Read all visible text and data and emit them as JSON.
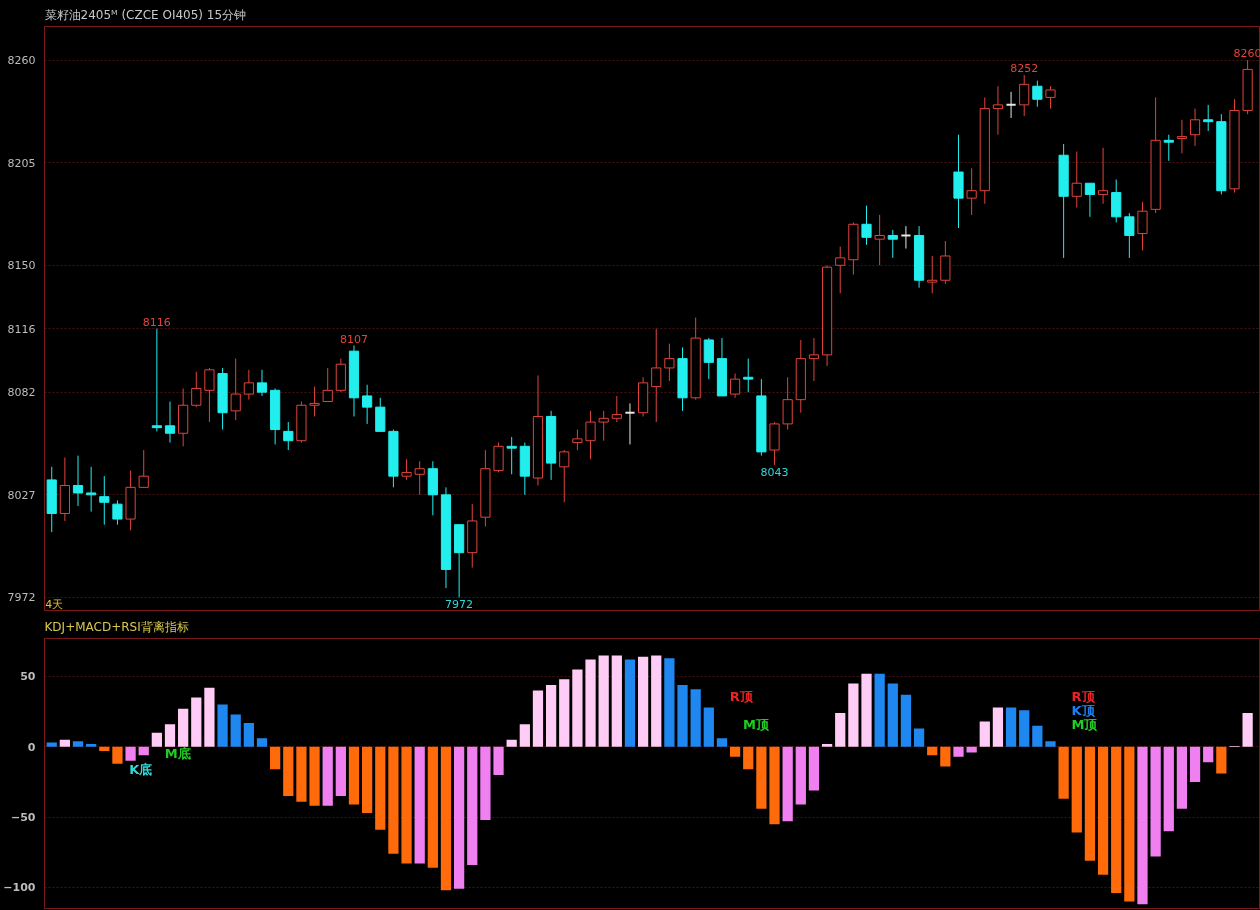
{
  "chart_data": [
    {
      "type": "candlestick",
      "title": "菜籽油2405ᴹ (CZCE OI405)  15分钟",
      "categories": [
        null,
        null,
        null,
        null,
        null,
        null,
        null,
        null,
        null,
        null,
        null,
        null,
        null,
        null,
        null,
        null,
        null,
        null,
        null,
        null,
        null,
        null,
        null,
        null,
        null,
        null,
        null,
        null,
        null,
        null,
        null,
        null,
        null,
        null,
        null,
        null,
        null,
        null,
        null,
        null,
        null,
        null,
        null,
        null,
        null,
        null,
        null,
        null,
        null,
        null,
        null,
        null,
        null,
        null,
        null,
        null,
        null,
        null,
        null,
        null,
        null,
        null,
        null,
        null,
        null,
        null,
        null,
        null,
        null,
        null,
        null,
        null,
        null,
        null,
        null,
        null,
        null,
        null,
        null,
        null,
        null,
        null,
        null,
        null,
        null,
        null,
        null,
        null,
        null,
        null,
        null,
        null
      ],
      "ohlc": [
        [
          8035,
          8042,
          8007,
          8017
        ],
        [
          8017,
          8047,
          8013,
          8032
        ],
        [
          8032,
          8048,
          8021,
          8028
        ],
        [
          8028,
          8042,
          8018,
          8027
        ],
        [
          8026,
          8037,
          8011,
          8023
        ],
        [
          8022,
          8024,
          8011,
          8014
        ],
        [
          8014,
          8040,
          8008,
          8031
        ],
        [
          8031,
          8051,
          8031,
          8037
        ],
        [
          8064,
          8116,
          8061,
          8063
        ],
        [
          8064,
          8077,
          8055,
          8060
        ],
        [
          8060,
          8084,
          8053,
          8075
        ],
        [
          8075,
          8093,
          8074,
          8084
        ],
        [
          8083,
          8095,
          8066,
          8094
        ],
        [
          8092,
          8095,
          8062,
          8071
        ],
        [
          8072,
          8100,
          8067,
          8081
        ],
        [
          8081,
          8094,
          8078,
          8087
        ],
        [
          8087,
          8094,
          8080,
          8082
        ],
        [
          8083,
          8084,
          8054,
          8062
        ],
        [
          8061,
          8066,
          8051,
          8056
        ],
        [
          8056,
          8077,
          8055,
          8075
        ],
        [
          8075,
          8085,
          8069,
          8076
        ],
        [
          8077,
          8095,
          8077,
          8083
        ],
        [
          8083,
          8100,
          8082,
          8097
        ],
        [
          8104,
          8107,
          8069,
          8079
        ],
        [
          8080,
          8086,
          8065,
          8074
        ],
        [
          8074,
          8079,
          8061,
          8061
        ],
        [
          8061,
          8062,
          8031,
          8037
        ],
        [
          8037,
          8046,
          8035,
          8039
        ],
        [
          8038,
          8045,
          8027,
          8041
        ],
        [
          8041,
          8045,
          8016,
          8027
        ],
        [
          8027,
          8031,
          7977,
          7987
        ],
        [
          8011,
          8011,
          7972,
          7996
        ],
        [
          7996,
          8022,
          7988,
          8013
        ],
        [
          8015,
          8051,
          8010,
          8041
        ],
        [
          8040,
          8055,
          8039,
          8053
        ],
        [
          8053,
          8058,
          8038,
          8052
        ],
        [
          8053,
          8055,
          8027,
          8037
        ],
        [
          8036,
          8091,
          8032,
          8069
        ],
        [
          8069,
          8072,
          8035,
          8044
        ],
        [
          8042,
          8051,
          8023,
          8050
        ],
        [
          8055,
          8062,
          8051,
          8057
        ],
        [
          8056,
          8072,
          8046,
          8066
        ],
        [
          8066,
          8072,
          8056,
          8068
        ],
        [
          8068,
          8080,
          8066,
          8070
        ],
        [
          8071,
          8076,
          8054,
          8071
        ],
        [
          8071,
          8090,
          8069,
          8087
        ],
        [
          8085,
          8116,
          8066,
          8095
        ],
        [
          8095,
          8108,
          8088,
          8100
        ],
        [
          8100,
          8106,
          8072,
          8079
        ],
        [
          8079,
          8122,
          8078,
          8111
        ],
        [
          8110,
          8111,
          8089,
          8098
        ],
        [
          8100,
          8111,
          8080,
          8080
        ],
        [
          8081,
          8092,
          8079,
          8089
        ],
        [
          8090,
          8100,
          8082,
          8089
        ],
        [
          8080,
          8089,
          8048,
          8050
        ],
        [
          8051,
          8066,
          8043,
          8065
        ],
        [
          8065,
          8090,
          8062,
          8078
        ],
        [
          8078,
          8110,
          8071,
          8100
        ],
        [
          8100,
          8111,
          8088,
          8102
        ],
        [
          8102,
          8150,
          8096,
          8149
        ],
        [
          8150,
          8160,
          8135,
          8154
        ],
        [
          8153,
          8173,
          8145,
          8172
        ],
        [
          8172,
          8182,
          8161,
          8165
        ],
        [
          8164,
          8177,
          8150,
          8166
        ],
        [
          8166,
          8169,
          8154,
          8164
        ],
        [
          8166,
          8171,
          8159,
          8166
        ],
        [
          8166,
          8171,
          8138,
          8142
        ],
        [
          8141,
          8155,
          8135,
          8142
        ],
        [
          8142,
          8163,
          8140,
          8155
        ],
        [
          8200,
          8220,
          8170,
          8186
        ],
        [
          8186,
          8202,
          8177,
          8190
        ],
        [
          8190,
          8240,
          8183,
          8234
        ],
        [
          8234,
          8246,
          8220,
          8236
        ],
        [
          8236,
          8243,
          8229,
          8236
        ],
        [
          8236,
          8252,
          8230,
          8247
        ],
        [
          8246,
          8249,
          8235,
          8239
        ],
        [
          8240,
          8246,
          8234,
          8244
        ],
        [
          8209,
          8215,
          8154,
          8187
        ],
        [
          8187,
          8211,
          8181,
          8194
        ],
        [
          8194,
          8194,
          8176,
          8188
        ],
        [
          8188,
          8213,
          8183,
          8190
        ],
        [
          8189,
          8196,
          8173,
          8176
        ],
        [
          8176,
          8178,
          8154,
          8166
        ],
        [
          8167,
          8184,
          8158,
          8179
        ],
        [
          8180,
          8240,
          8178,
          8217
        ],
        [
          8217,
          8220,
          8206,
          8216
        ],
        [
          8218,
          8228,
          8210,
          8219
        ],
        [
          8220,
          8234,
          8214,
          8228
        ],
        [
          8228,
          8236,
          8222,
          8227
        ],
        [
          8227,
          8231,
          8188,
          8190
        ],
        [
          8191,
          8239,
          8189,
          8233
        ],
        [
          8233,
          8260,
          8231,
          8255
        ]
      ],
      "ylim": [
        7965,
        8278
      ],
      "yticks": [
        7972,
        8027,
        8082,
        8116,
        8150,
        8205,
        8260
      ],
      "grid": "y",
      "annotations": [
        "4天",
        {
          "text": "8116",
          "y": 8116
        },
        {
          "text": "8107",
          "y": 8107
        },
        {
          "text": "7972",
          "y": 7972
        },
        {
          "text": "8043",
          "y": 8043
        },
        {
          "text": "8252",
          "y": 8252
        },
        {
          "text": "8260",
          "y": 8260
        }
      ]
    },
    {
      "type": "bar",
      "title": "KDJ+MACD+RSI背离指标",
      "categories": [
        null,
        null,
        null,
        null,
        null,
        null,
        null,
        null,
        null,
        null,
        null,
        null,
        null,
        null,
        null,
        null,
        null,
        null,
        null,
        null,
        null,
        null,
        null,
        null,
        null,
        null,
        null,
        null,
        null,
        null,
        null,
        null,
        null,
        null,
        null,
        null,
        null,
        null,
        null,
        null,
        null,
        null,
        null,
        null,
        null,
        null,
        null,
        null,
        null,
        null,
        null,
        null,
        null,
        null,
        null,
        null,
        null,
        null,
        null,
        null,
        null,
        null,
        null,
        null,
        null,
        null,
        null,
        null,
        null,
        null,
        null,
        null,
        null,
        null,
        null,
        null,
        null,
        null,
        null,
        null,
        null,
        null,
        null,
        null,
        null,
        null,
        null,
        null,
        null,
        null,
        null,
        null
      ],
      "values": [
        3,
        5,
        4,
        2,
        -3,
        -12,
        -10,
        -6,
        10,
        16,
        27,
        35,
        42,
        30,
        23,
        17,
        6,
        -16,
        -35,
        -39,
        -42,
        -42,
        -35,
        -41,
        -47,
        -59,
        -76,
        -83,
        -83,
        -86,
        -102,
        -101,
        -84,
        -52,
        -20,
        5,
        16,
        40,
        44,
        48,
        55,
        62,
        65,
        65,
        62,
        64,
        65,
        63,
        44,
        41,
        28,
        6,
        -7,
        -16,
        -44,
        -55,
        -53,
        -41,
        -31,
        2,
        24,
        45,
        52,
        52,
        45,
        37,
        13,
        -6,
        -14,
        -7,
        -4,
        18,
        28,
        28,
        26,
        15,
        4,
        -37,
        -61,
        -81,
        -91,
        -104,
        -110,
        -112,
        -78,
        -60,
        -44,
        -25,
        -11,
        -19,
        0.5,
        24
      ],
      "colors": [
        "#1e88f0",
        "#ffccf6",
        "#1e88f0",
        "#1e88f0",
        "#ff6a0a",
        "#ff6a0a",
        "#f080f0",
        "#f080f0",
        "#ffccf6",
        "#ffccf6",
        "#ffccf6",
        "#ffccf6",
        "#ffccf6",
        "#1e88f0",
        "#1e88f0",
        "#1e88f0",
        "#1e88f0",
        "#ff6a0a",
        "#ff6a0a",
        "#ff6a0a",
        "#ff6a0a",
        "#f080f0",
        "#f080f0",
        "#ff6a0a",
        "#ff6a0a",
        "#ff6a0a",
        "#ff6a0a",
        "#ff6a0a",
        "#f080f0",
        "#ff6a0a",
        "#ff6a0a",
        "#f080f0",
        "#f080f0",
        "#f080f0",
        "#f080f0",
        "#ffccf6",
        "#ffccf6",
        "#ffccf6",
        "#ffccf6",
        "#ffccf6",
        "#ffccf6",
        "#ffccf6",
        "#ffccf6",
        "#ffccf6",
        "#1e88f0",
        "#ffccf6",
        "#ffccf6",
        "#1e88f0",
        "#1e88f0",
        "#1e88f0",
        "#1e88f0",
        "#1e88f0",
        "#ff6a0a",
        "#ff6a0a",
        "#ff6a0a",
        "#ff6a0a",
        "#f080f0",
        "#f080f0",
        "#f080f0",
        "#ffccf6",
        "#ffccf6",
        "#ffccf6",
        "#ffccf6",
        "#1e88f0",
        "#1e88f0",
        "#1e88f0",
        "#1e88f0",
        "#ff6a0a",
        "#ff6a0a",
        "#f080f0",
        "#f080f0",
        "#ffccf6",
        "#ffccf6",
        "#1e88f0",
        "#1e88f0",
        "#1e88f0",
        "#1e88f0",
        "#ff6a0a",
        "#ff6a0a",
        "#ff6a0a",
        "#ff6a0a",
        "#ff6a0a",
        "#ff6a0a",
        "#f080f0",
        "#f080f0",
        "#f080f0",
        "#f080f0",
        "#f080f0",
        "#f080f0",
        "#ff6a0a",
        "#ffccf6",
        "#ffccf6"
      ],
      "ylim": [
        -115,
        77
      ],
      "yticks": [
        -100,
        -50,
        0,
        50
      ],
      "grid": "y",
      "annotations": [
        "K底",
        "M底",
        "R顶",
        "M顶",
        "R顶",
        "K顶",
        "M顶"
      ]
    }
  ]
}
